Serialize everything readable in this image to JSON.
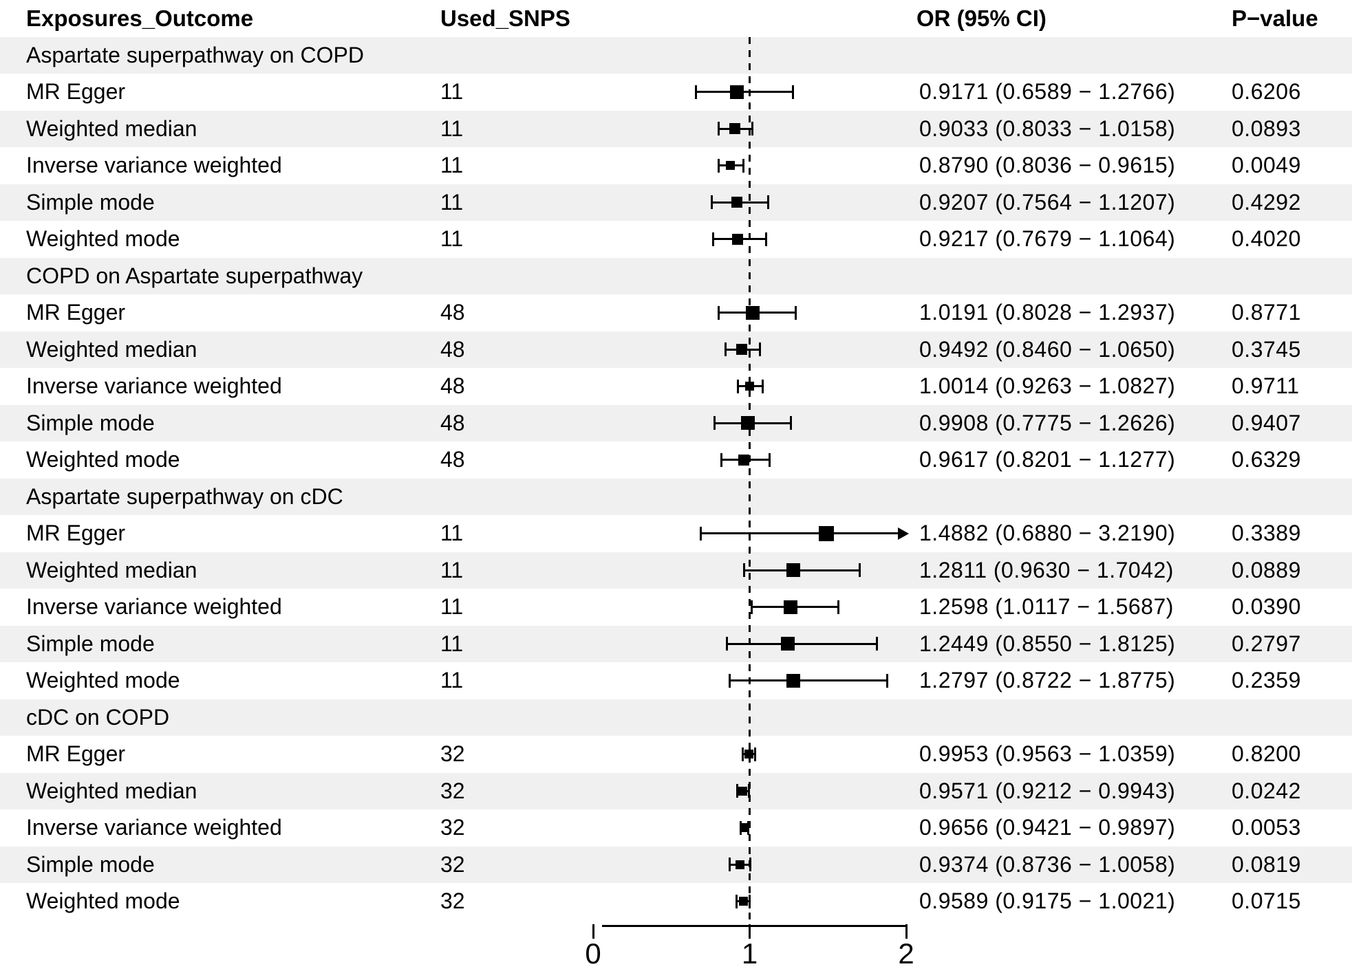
{
  "chart_data": {
    "type": "forest",
    "title": "",
    "columns": [
      "Exposures_Outcome",
      "Used_SNPS",
      "OR (95% CI)",
      "P−value"
    ],
    "axis": {
      "min": 0,
      "max": 2,
      "ticks": [
        0,
        1,
        2
      ],
      "reference_line": 1
    },
    "groups": [
      {
        "label": "Aspartate superpathway on COPD",
        "rows": [
          {
            "method": "MR Egger",
            "snps": "11",
            "or": 0.9171,
            "lo": 0.6589,
            "hi": 1.2766,
            "or_ci": "0.9171 (0.6589 − 1.2766)",
            "p": "0.6206"
          },
          {
            "method": "Weighted median",
            "snps": "11",
            "or": 0.9033,
            "lo": 0.8033,
            "hi": 1.0158,
            "or_ci": "0.9033 (0.8033 − 1.0158)",
            "p": "0.0893"
          },
          {
            "method": "Inverse variance weighted",
            "snps": "11",
            "or": 0.879,
            "lo": 0.8036,
            "hi": 0.9615,
            "or_ci": "0.8790 (0.8036 − 0.9615)",
            "p": "0.0049"
          },
          {
            "method": "Simple mode",
            "snps": "11",
            "or": 0.9207,
            "lo": 0.7564,
            "hi": 1.1207,
            "or_ci": "0.9207 (0.7564 − 1.1207)",
            "p": "0.4292"
          },
          {
            "method": "Weighted mode",
            "snps": "11",
            "or": 0.9217,
            "lo": 0.7679,
            "hi": 1.1064,
            "or_ci": "0.9217 (0.7679 − 1.1064)",
            "p": "0.4020"
          }
        ]
      },
      {
        "label": "COPD on Aspartate superpathway",
        "rows": [
          {
            "method": "MR Egger",
            "snps": "48",
            "or": 1.0191,
            "lo": 0.8028,
            "hi": 1.2937,
            "or_ci": "1.0191 (0.8028 − 1.2937)",
            "p": "0.8771"
          },
          {
            "method": "Weighted median",
            "snps": "48",
            "or": 0.9492,
            "lo": 0.846,
            "hi": 1.065,
            "or_ci": "0.9492 (0.8460 − 1.0650)",
            "p": "0.3745"
          },
          {
            "method": "Inverse variance weighted",
            "snps": "48",
            "or": 1.0014,
            "lo": 0.9263,
            "hi": 1.0827,
            "or_ci": "1.0014 (0.9263 − 1.0827)",
            "p": "0.9711"
          },
          {
            "method": "Simple mode",
            "snps": "48",
            "or": 0.9908,
            "lo": 0.7775,
            "hi": 1.2626,
            "or_ci": "0.9908 (0.7775 − 1.2626)",
            "p": "0.9407"
          },
          {
            "method": "Weighted mode",
            "snps": "48",
            "or": 0.9617,
            "lo": 0.8201,
            "hi": 1.1277,
            "or_ci": "0.9617 (0.8201 − 1.1277)",
            "p": "0.6329"
          }
        ]
      },
      {
        "label": "Aspartate superpathway on cDC",
        "rows": [
          {
            "method": "MR Egger",
            "snps": "11",
            "or": 1.4882,
            "lo": 0.688,
            "hi": 3.219,
            "or_ci": "1.4882 (0.6880 − 3.2190)",
            "p": "0.3389",
            "clipped": true
          },
          {
            "method": "Weighted median",
            "snps": "11",
            "or": 1.2811,
            "lo": 0.963,
            "hi": 1.7042,
            "or_ci": "1.2811 (0.9630 − 1.7042)",
            "p": "0.0889"
          },
          {
            "method": "Inverse variance weighted",
            "snps": "11",
            "or": 1.2598,
            "lo": 1.0117,
            "hi": 1.5687,
            "or_ci": "1.2598 (1.0117 − 1.5687)",
            "p": "0.0390"
          },
          {
            "method": "Simple mode",
            "snps": "11",
            "or": 1.2449,
            "lo": 0.855,
            "hi": 1.8125,
            "or_ci": "1.2449 (0.8550 − 1.8125)",
            "p": "0.2797"
          },
          {
            "method": "Weighted mode",
            "snps": "11",
            "or": 1.2797,
            "lo": 0.8722,
            "hi": 1.8775,
            "or_ci": "1.2797 (0.8722 − 1.8775)",
            "p": "0.2359"
          }
        ]
      },
      {
        "label": "cDC on COPD",
        "rows": [
          {
            "method": "MR Egger",
            "snps": "32",
            "or": 0.9953,
            "lo": 0.9563,
            "hi": 1.0359,
            "or_ci": "0.9953 (0.9563 − 1.0359)",
            "p": "0.8200"
          },
          {
            "method": "Weighted median",
            "snps": "32",
            "or": 0.9571,
            "lo": 0.9212,
            "hi": 0.9943,
            "or_ci": "0.9571 (0.9212 − 0.9943)",
            "p": "0.0242"
          },
          {
            "method": "Inverse variance weighted",
            "snps": "32",
            "or": 0.9656,
            "lo": 0.9421,
            "hi": 0.9897,
            "or_ci": "0.9656 (0.9421 − 0.9897)",
            "p": "0.0053"
          },
          {
            "method": "Simple mode",
            "snps": "32",
            "or": 0.9374,
            "lo": 0.8736,
            "hi": 1.0058,
            "or_ci": "0.9374 (0.8736 − 1.0058)",
            "p": "0.0819"
          },
          {
            "method": "Weighted mode",
            "snps": "32",
            "or": 0.9589,
            "lo": 0.9175,
            "hi": 1.0021,
            "or_ci": "0.9589 (0.9175 − 1.0021)",
            "p": "0.0715"
          }
        ]
      }
    ]
  },
  "colors": {
    "background": "#ffffff",
    "shade_row": "#eff0ef",
    "text": "#000000",
    "marker": "#000000"
  }
}
